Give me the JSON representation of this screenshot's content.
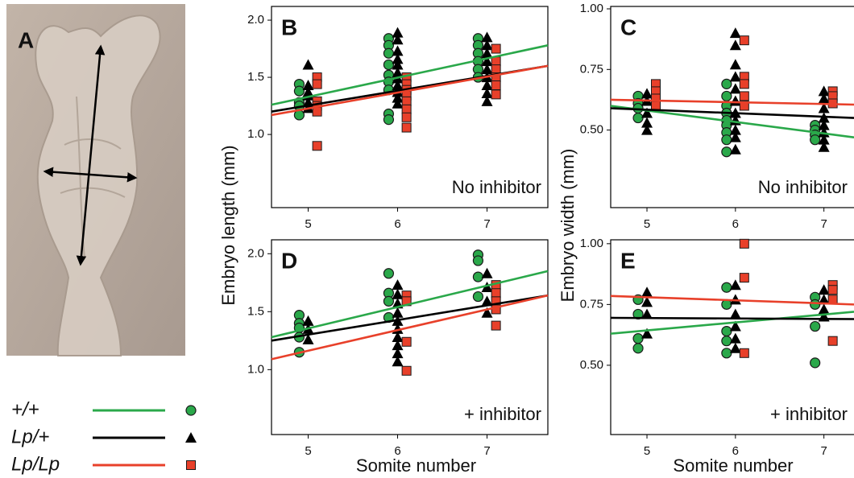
{
  "panel_a": {
    "label": "A"
  },
  "legend": [
    {
      "label": "+/+",
      "color": "#2aa84a",
      "marker": "circle"
    },
    {
      "label": "Lp/+",
      "color": "#000000",
      "marker": "triangle"
    },
    {
      "label": "Lp/Lp",
      "color": "#e8402a",
      "marker": "square"
    }
  ],
  "chart_data": [
    {
      "type": "scatter",
      "panel": "B",
      "annotation": "No inhibitor",
      "ylabel": "Embryo length (mm)",
      "xlim": [
        4.59,
        7.68
      ],
      "ylim": [
        0.36,
        2.12
      ],
      "xticks": [
        5,
        6,
        7
      ],
      "yticks": [
        {
          "value": 1,
          "label": "1.0"
        },
        1.5,
        {
          "value": 2,
          "label": "2.0"
        }
      ],
      "series": [
        {
          "color": "#2aa84a",
          "marker": "circle",
          "x": [
            4.9,
            4.9,
            4.9,
            4.9,
            4.9,
            5.9,
            5.9,
            5.9,
            5.9,
            5.9,
            5.9,
            5.9,
            5.9,
            5.9,
            6.9,
            6.9,
            6.9,
            6.9,
            6.9,
            6.9
          ],
          "values": [
            1.44,
            1.38,
            1.28,
            1.25,
            1.17,
            1.84,
            1.78,
            1.71,
            1.61,
            1.52,
            1.46,
            1.39,
            1.18,
            1.13,
            1.84,
            1.78,
            1.71,
            1.64,
            1.57,
            1.5
          ],
          "fit": {
            "x": [
              4.59,
              7.68
            ],
            "values": [
              1.26,
              1.78
            ]
          }
        },
        {
          "color": "#000000",
          "marker": "triangle",
          "x": [
            5,
            5,
            5,
            5,
            5,
            5,
            6,
            6,
            6,
            6,
            6,
            6,
            6,
            6,
            6,
            6,
            6,
            7,
            7,
            7,
            7,
            7,
            7,
            7,
            7,
            7
          ],
          "values": [
            1.61,
            1.43,
            1.37,
            1.34,
            1.28,
            1.23,
            1.89,
            1.83,
            1.73,
            1.66,
            1.61,
            1.54,
            1.49,
            1.43,
            1.37,
            1.32,
            1.27,
            1.85,
            1.78,
            1.71,
            1.64,
            1.57,
            1.5,
            1.43,
            1.36,
            1.29
          ],
          "fit": {
            "x": [
              4.59,
              7.68
            ],
            "values": [
              1.2,
              1.6
            ]
          }
        },
        {
          "color": "#e8402a",
          "marker": "square",
          "x": [
            5.1,
            5.1,
            5.1,
            5.1,
            5.1,
            5.1,
            6.1,
            6.1,
            6.1,
            6.1,
            6.1,
            6.1,
            6.1,
            6.1,
            7.1,
            7.1,
            7.1,
            7.1,
            7.1,
            7.1
          ],
          "values": [
            1.5,
            1.44,
            1.29,
            1.25,
            1.2,
            0.9,
            1.5,
            1.44,
            1.39,
            1.34,
            1.29,
            1.22,
            1.15,
            1.06,
            1.75,
            1.64,
            1.57,
            1.5,
            1.43,
            1.35
          ],
          "fit": {
            "x": [
              4.59,
              7.68
            ],
            "values": [
              1.17,
              1.6
            ]
          }
        }
      ]
    },
    {
      "type": "scatter",
      "panel": "C",
      "annotation": "No inhibitor",
      "ylabel": "Embryo width (mm)",
      "xlim": [
        4.59,
        7.34
      ],
      "ylim": [
        0.18,
        1.01
      ],
      "xticks": [
        5,
        6,
        7
      ],
      "yticks": [
        {
          "value": 0.5,
          "label": "0.50"
        },
        0.75,
        {
          "value": 1,
          "label": "1.00"
        }
      ],
      "series": [
        {
          "color": "#2aa84a",
          "marker": "circle",
          "x": [
            4.9,
            4.9,
            4.9,
            4.9,
            5.9,
            5.9,
            5.9,
            5.9,
            5.9,
            5.9,
            5.9,
            5.9,
            5.9,
            6.9,
            6.9,
            6.9,
            6.9
          ],
          "values": [
            0.64,
            0.61,
            0.59,
            0.55,
            0.69,
            0.64,
            0.6,
            0.57,
            0.54,
            0.52,
            0.49,
            0.46,
            0.41,
            0.52,
            0.5,
            0.48,
            0.46
          ],
          "fit": {
            "x": [
              4.59,
              7.34
            ],
            "values": [
              0.6,
              0.47
            ]
          }
        },
        {
          "color": "#000000",
          "marker": "triangle",
          "x": [
            5,
            5,
            5,
            5,
            5,
            6,
            6,
            6,
            6,
            6,
            6,
            6,
            6,
            6,
            6,
            6,
            7,
            7,
            7,
            7,
            7,
            7,
            7,
            7
          ],
          "values": [
            0.65,
            0.62,
            0.57,
            0.53,
            0.5,
            0.9,
            0.85,
            0.77,
            0.72,
            0.67,
            0.62,
            0.57,
            0.54,
            0.5,
            0.47,
            0.42,
            0.66,
            0.63,
            0.59,
            0.55,
            0.52,
            0.49,
            0.46,
            0.43
          ],
          "fit": {
            "x": [
              4.59,
              7.34
            ],
            "values": [
              0.59,
              0.55
            ]
          }
        },
        {
          "color": "#e8402a",
          "marker": "square",
          "x": [
            5.1,
            5.1,
            5.1,
            5.1,
            6.1,
            6.1,
            6.1,
            6.1,
            6.1,
            7.1,
            7.1,
            7.1
          ],
          "values": [
            0.69,
            0.66,
            0.63,
            0.6,
            0.87,
            0.72,
            0.69,
            0.64,
            0.6,
            0.66,
            0.64,
            0.61
          ],
          "fit": {
            "x": [
              4.59,
              7.34
            ],
            "values": [
              0.625,
              0.605
            ]
          }
        }
      ]
    },
    {
      "type": "scatter",
      "panel": "D",
      "annotation": "+ inhibitor",
      "xlabel": "Somite number",
      "xlim": [
        4.59,
        7.68
      ],
      "ylim": [
        0.44,
        2.12
      ],
      "xticks": [
        5,
        6,
        7
      ],
      "yticks": [
        {
          "value": 1,
          "label": "1.0"
        },
        1.5,
        {
          "value": 2,
          "label": "2.0"
        }
      ],
      "series": [
        {
          "color": "#2aa84a",
          "marker": "circle",
          "x": [
            4.9,
            4.9,
            4.9,
            4.9,
            4.9,
            5.9,
            5.9,
            5.9,
            5.9,
            6.9,
            6.9,
            6.9,
            6.9
          ],
          "values": [
            1.47,
            1.4,
            1.36,
            1.28,
            1.15,
            1.83,
            1.66,
            1.59,
            1.45,
            1.99,
            1.94,
            1.8,
            1.63
          ],
          "fit": {
            "x": [
              4.59,
              7.68
            ],
            "values": [
              1.28,
              1.85
            ]
          }
        },
        {
          "color": "#000000",
          "marker": "triangle",
          "x": [
            5,
            5,
            5,
            6,
            6,
            6,
            6,
            6,
            6,
            6,
            6,
            6,
            6,
            7,
            7,
            7,
            7
          ],
          "values": [
            1.42,
            1.35,
            1.26,
            1.73,
            1.65,
            1.57,
            1.49,
            1.42,
            1.35,
            1.28,
            1.21,
            1.14,
            1.07,
            1.83,
            1.71,
            1.59,
            1.49
          ],
          "fit": {
            "x": [
              4.59,
              7.68
            ],
            "values": [
              1.25,
              1.64
            ]
          }
        },
        {
          "color": "#e8402a",
          "marker": "square",
          "x": [
            6.1,
            6.1,
            6.1,
            6.1,
            7.1,
            7.1,
            7.1,
            7.1,
            7.1
          ],
          "values": [
            1.64,
            1.59,
            1.24,
            0.99,
            1.73,
            1.66,
            1.59,
            1.52,
            1.38
          ],
          "fit": {
            "x": [
              4.59,
              7.68
            ],
            "values": [
              1.09,
              1.64
            ]
          }
        }
      ]
    },
    {
      "type": "scatter",
      "panel": "E",
      "annotation": "+ inhibitor",
      "xlabel": "Somite number",
      "xlim": [
        4.59,
        7.34
      ],
      "ylim": [
        0.215,
        1.016
      ],
      "xticks": [
        5,
        6,
        7
      ],
      "yticks": [
        {
          "value": 0.5,
          "label": "0.50"
        },
        0.75,
        {
          "value": 1,
          "label": "1.00"
        }
      ],
      "series": [
        {
          "color": "#2aa84a",
          "marker": "circle",
          "x": [
            4.9,
            4.9,
            4.9,
            4.9,
            5.9,
            5.9,
            5.9,
            5.9,
            5.9,
            6.9,
            6.9,
            6.9,
            6.9
          ],
          "values": [
            0.77,
            0.71,
            0.61,
            0.57,
            0.82,
            0.75,
            0.64,
            0.6,
            0.55,
            0.78,
            0.75,
            0.66,
            0.51
          ],
          "fit": {
            "x": [
              4.59,
              7.34
            ],
            "values": [
              0.63,
              0.72
            ]
          }
        },
        {
          "color": "#000000",
          "marker": "triangle",
          "x": [
            5,
            5,
            5,
            5,
            6,
            6,
            6,
            6,
            6,
            6,
            7,
            7,
            7,
            7
          ],
          "values": [
            0.8,
            0.76,
            0.71,
            0.63,
            0.83,
            0.77,
            0.71,
            0.66,
            0.61,
            0.57,
            0.81,
            0.77,
            0.73,
            0.7
          ],
          "fit": {
            "x": [
              4.59,
              7.34
            ],
            "values": [
              0.695,
              0.69
            ]
          }
        },
        {
          "color": "#e8402a",
          "marker": "square",
          "x": [
            6.1,
            6.1,
            6.1,
            7.1,
            7.1,
            7.1,
            7.1
          ],
          "values": [
            1.0,
            0.86,
            0.55,
            0.83,
            0.81,
            0.77,
            0.6
          ],
          "fit": {
            "x": [
              4.59,
              7.34
            ],
            "values": [
              0.785,
              0.75
            ]
          }
        }
      ]
    }
  ]
}
